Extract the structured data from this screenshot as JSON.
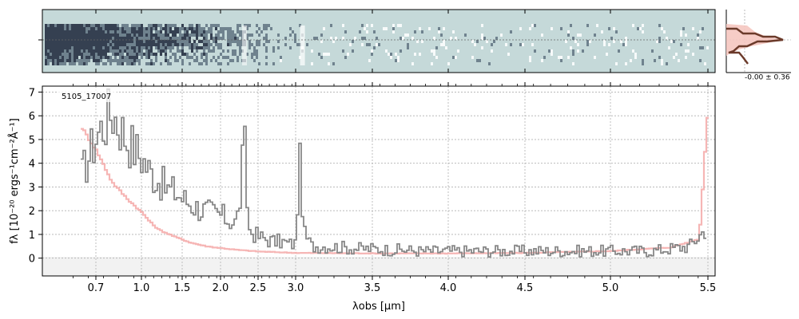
{
  "chart_data": [
    {
      "type": "heatmap",
      "panel": "2d-spectrum",
      "description_colormap": "blue-grey on teal-grey background",
      "colors": {
        "background": "#c5d9d9",
        "dark": "#1b2538",
        "mid": "#5f7280",
        "light": "#ffffff"
      }
    },
    {
      "type": "line",
      "panel": "1d-spectrum",
      "object_label": "5105_17007",
      "xlabel": "λobs [μm]",
      "ylabel": "fλ [10⁻²⁰ ergs⁻¹cm⁻²Å⁻¹]",
      "x_scale": "nonlinear (approximately 1/λ-like compression at red end)",
      "x_tick_labels": [
        "0.7",
        "1.0",
        "1.5",
        "2.0",
        "2.5",
        "3.0",
        "3.5",
        "4.0",
        "4.5",
        "5.0",
        "5.5"
      ],
      "x_ticks": [
        0.7,
        1.0,
        1.5,
        2.0,
        2.5,
        3.0,
        3.5,
        4.0,
        4.5,
        5.0,
        5.5
      ],
      "y_tick_labels": [
        "0",
        "1",
        "2",
        "3",
        "4",
        "5",
        "6",
        "7"
      ],
      "y_ticks": [
        0,
        1,
        2,
        3,
        4,
        5,
        6,
        7
      ],
      "ylim": [
        -0.75,
        7.25
      ],
      "xlim": [
        0.5,
        5.52
      ],
      "grid": true,
      "series": [
        {
          "role": "data",
          "color": "#888888",
          "x": [
            0.6,
            0.7,
            0.8,
            0.9,
            1.0,
            1.1,
            1.2,
            1.3,
            1.4,
            1.5,
            1.6,
            1.7,
            1.8,
            1.9,
            2.0,
            2.1,
            2.2,
            2.25,
            2.3,
            2.33,
            2.36,
            2.4,
            2.5,
            2.6,
            2.7,
            2.8,
            2.9,
            2.98,
            3.02,
            3.05,
            3.1,
            3.2,
            3.3,
            3.4,
            3.5,
            3.6,
            3.7,
            3.8,
            3.9,
            4.0,
            4.2,
            4.4,
            4.6,
            4.8,
            5.0,
            5.2,
            5.4,
            5.48
          ],
          "y": [
            3.5,
            5.2,
            6.2,
            5.0,
            4.2,
            3.6,
            3.3,
            2.9,
            2.8,
            2.5,
            2.3,
            2.1,
            2.0,
            1.9,
            1.8,
            1.6,
            1.5,
            2.6,
            5.2,
            3.0,
            1.2,
            1.1,
            0.9,
            0.8,
            0.7,
            0.7,
            0.6,
            0.6,
            4.0,
            1.0,
            0.5,
            0.5,
            0.45,
            0.4,
            0.4,
            0.35,
            0.35,
            0.3,
            0.3,
            0.3,
            0.3,
            0.3,
            0.3,
            0.3,
            0.3,
            0.3,
            0.5,
            1.2
          ]
        },
        {
          "role": "model",
          "color": "#f4a9a8",
          "x": [
            0.6,
            0.7,
            0.8,
            0.9,
            1.0,
            1.1,
            1.2,
            1.4,
            1.6,
            1.8,
            2.0,
            2.2,
            2.5,
            3.0,
            3.5,
            4.0,
            4.5,
            5.0,
            5.3,
            5.45,
            5.5
          ],
          "y": [
            5.5,
            4.5,
            3.2,
            2.5,
            1.9,
            1.5,
            1.2,
            0.9,
            0.65,
            0.5,
            0.42,
            0.35,
            0.28,
            0.22,
            0.2,
            0.2,
            0.22,
            0.3,
            0.45,
            0.8,
            7.0
          ]
        }
      ]
    },
    {
      "type": "line",
      "panel": "profile",
      "annotation": "-0.00 ± 0.36",
      "series": [
        {
          "role": "profile-dark",
          "color": "#6b3a2a"
        },
        {
          "role": "profile-light",
          "color": "#f5c6c0"
        }
      ]
    }
  ]
}
